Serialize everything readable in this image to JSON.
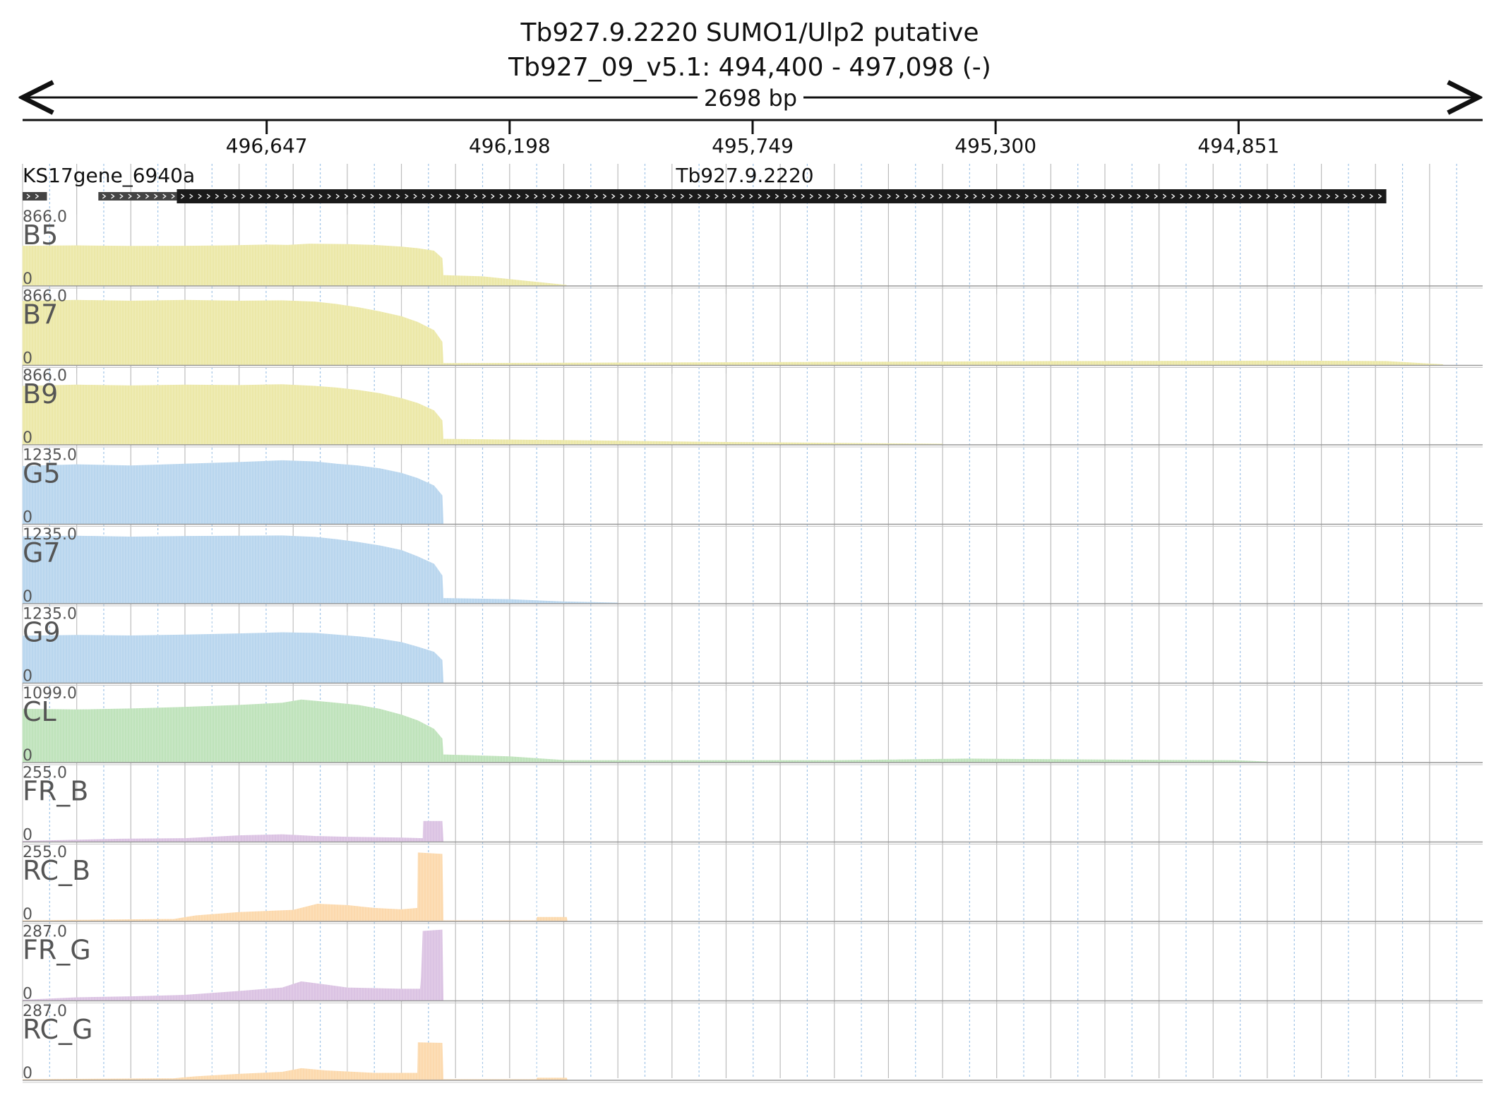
{
  "header": {
    "title_line1": "Tb927.9.2220  SUMO1/Ulp2  putative",
    "title_line2": "Tb927_09_v5.1: 494,400 - 497,098 (-)",
    "span_label": "2698 bp"
  },
  "genes": [
    {
      "name": "KS17gene_6940a",
      "start_bp": 0,
      "end_bp": 45,
      "style": "gray"
    },
    {
      "name": "",
      "start_bp": 140,
      "end_bp": 285,
      "style": "gray"
    },
    {
      "name": "Tb927.9.2220",
      "start_bp": 285,
      "end_bp": 2520,
      "style": "black"
    }
  ],
  "chart_data": {
    "type": "area",
    "x_axis": {
      "start": 497098,
      "end": 494400,
      "ticks": [
        496647,
        496198,
        495749,
        495300,
        494851
      ],
      "tick_labels": [
        "496,647",
        "496,198",
        "495,749",
        "495,300",
        "494,851"
      ],
      "grid": true
    },
    "tracks": [
      {
        "name": "B5",
        "ymax": "866.0",
        "ymin": "0",
        "color": "#ece8a8",
        "points": [
          [
            0,
            480
          ],
          [
            100,
            485
          ],
          [
            200,
            478
          ],
          [
            300,
            480
          ],
          [
            380,
            485
          ],
          [
            450,
            495
          ],
          [
            490,
            490
          ],
          [
            530,
            505
          ],
          [
            600,
            500
          ],
          [
            650,
            490
          ],
          [
            700,
            470
          ],
          [
            730,
            450
          ],
          [
            760,
            420
          ],
          [
            775,
            330
          ],
          [
            777,
            120
          ],
          [
            850,
            105
          ],
          [
            1005,
            0
          ]
        ]
      },
      {
        "name": "B7",
        "ymax": "866.0",
        "ymin": "0",
        "color": "#ece8a8",
        "points": [
          [
            0,
            780
          ],
          [
            100,
            790
          ],
          [
            200,
            780
          ],
          [
            300,
            790
          ],
          [
            400,
            780
          ],
          [
            480,
            785
          ],
          [
            540,
            770
          ],
          [
            580,
            740
          ],
          [
            620,
            700
          ],
          [
            660,
            650
          ],
          [
            700,
            590
          ],
          [
            730,
            520
          ],
          [
            760,
            420
          ],
          [
            775,
            280
          ],
          [
            777,
            15
          ],
          [
            1300,
            25
          ],
          [
            1900,
            40
          ],
          [
            2300,
            45
          ],
          [
            2520,
            40
          ],
          [
            2625,
            0
          ]
        ]
      },
      {
        "name": "B9",
        "ymax": "866.0",
        "ymin": "0",
        "color": "#ece8a8",
        "points": [
          [
            0,
            710
          ],
          [
            100,
            725
          ],
          [
            200,
            715
          ],
          [
            300,
            725
          ],
          [
            400,
            720
          ],
          [
            480,
            730
          ],
          [
            540,
            710
          ],
          [
            580,
            690
          ],
          [
            620,
            660
          ],
          [
            660,
            620
          ],
          [
            700,
            560
          ],
          [
            730,
            500
          ],
          [
            760,
            410
          ],
          [
            775,
            290
          ],
          [
            777,
            60
          ],
          [
            1000,
            45
          ],
          [
            1250,
            25
          ],
          [
            1700,
            0
          ]
        ]
      },
      {
        "name": "G5",
        "ymax": "1235.0",
        "ymin": "0",
        "color": "#b9d6ee",
        "points": [
          [
            0,
            1000
          ],
          [
            100,
            1030
          ],
          [
            200,
            1010
          ],
          [
            300,
            1040
          ],
          [
            400,
            1070
          ],
          [
            480,
            1100
          ],
          [
            540,
            1080
          ],
          [
            580,
            1040
          ],
          [
            620,
            1010
          ],
          [
            660,
            960
          ],
          [
            700,
            880
          ],
          [
            730,
            790
          ],
          [
            760,
            660
          ],
          [
            775,
            490
          ],
          [
            777,
            0
          ]
        ]
      },
      {
        "name": "G7",
        "ymax": "1235.0",
        "ymin": "0",
        "color": "#b9d6ee",
        "points": [
          [
            0,
            1160
          ],
          [
            100,
            1170
          ],
          [
            200,
            1155
          ],
          [
            300,
            1165
          ],
          [
            400,
            1170
          ],
          [
            480,
            1175
          ],
          [
            540,
            1150
          ],
          [
            580,
            1110
          ],
          [
            620,
            1060
          ],
          [
            660,
            1000
          ],
          [
            700,
            920
          ],
          [
            730,
            810
          ],
          [
            760,
            680
          ],
          [
            775,
            480
          ],
          [
            777,
            80
          ],
          [
            900,
            60
          ],
          [
            1000,
            20
          ],
          [
            1100,
            0
          ]
        ]
      },
      {
        "name": "G9",
        "ymax": "1235.0",
        "ymin": "0",
        "color": "#b9d6ee",
        "points": [
          [
            0,
            810
          ],
          [
            100,
            825
          ],
          [
            200,
            815
          ],
          [
            300,
            830
          ],
          [
            400,
            850
          ],
          [
            480,
            870
          ],
          [
            540,
            860
          ],
          [
            580,
            830
          ],
          [
            620,
            800
          ],
          [
            660,
            760
          ],
          [
            700,
            700
          ],
          [
            730,
            620
          ],
          [
            760,
            530
          ],
          [
            775,
            390
          ],
          [
            777,
            0
          ]
        ]
      },
      {
        "name": "CL",
        "ymax": "1099.0",
        "ymin": "0",
        "color": "#bfe3bb",
        "points": [
          [
            0,
            820
          ],
          [
            100,
            810
          ],
          [
            200,
            825
          ],
          [
            300,
            850
          ],
          [
            400,
            880
          ],
          [
            480,
            915
          ],
          [
            515,
            965
          ],
          [
            560,
            930
          ],
          [
            620,
            880
          ],
          [
            660,
            820
          ],
          [
            700,
            730
          ],
          [
            730,
            640
          ],
          [
            760,
            510
          ],
          [
            775,
            360
          ],
          [
            777,
            110
          ],
          [
            900,
            80
          ],
          [
            1005,
            20
          ],
          [
            1500,
            20
          ],
          [
            1750,
            45
          ],
          [
            2000,
            30
          ],
          [
            2240,
            20
          ],
          [
            2300,
            0
          ]
        ]
      },
      {
        "name": "FR_B",
        "ymax": "255.0",
        "ymin": "0",
        "color": "#dbc3e3",
        "points": [
          [
            0,
            0
          ],
          [
            180,
            8
          ],
          [
            300,
            10
          ],
          [
            400,
            20
          ],
          [
            480,
            24
          ],
          [
            540,
            18
          ],
          [
            600,
            15
          ],
          [
            700,
            12
          ],
          [
            740,
            10
          ],
          [
            741,
            72
          ],
          [
            775,
            72
          ],
          [
            777,
            0
          ]
        ]
      },
      {
        "name": "RC_B",
        "ymax": "255.0",
        "ymin": "0",
        "color": "#fcd9ad",
        "points": [
          [
            0,
            0
          ],
          [
            280,
            5
          ],
          [
            320,
            18
          ],
          [
            400,
            30
          ],
          [
            500,
            38
          ],
          [
            545,
            60
          ],
          [
            600,
            55
          ],
          [
            650,
            45
          ],
          [
            700,
            40
          ],
          [
            730,
            45
          ],
          [
            731,
            245
          ],
          [
            775,
            240
          ],
          [
            777,
            0
          ],
          [
            950,
            0
          ],
          [
            951,
            12
          ],
          [
            1005,
            12
          ],
          [
            1006,
            0
          ]
        ]
      },
      {
        "name": "FR_G",
        "ymax": "287.0",
        "ymin": "0",
        "color": "#dbc3e3",
        "points": [
          [
            0,
            0
          ],
          [
            100,
            10
          ],
          [
            200,
            14
          ],
          [
            300,
            20
          ],
          [
            400,
            36
          ],
          [
            480,
            50
          ],
          [
            515,
            75
          ],
          [
            560,
            62
          ],
          [
            600,
            50
          ],
          [
            700,
            45
          ],
          [
            735,
            45
          ],
          [
            737,
            95
          ],
          [
            740,
            280
          ],
          [
            775,
            285
          ],
          [
            777,
            0
          ]
        ]
      },
      {
        "name": "RC_G",
        "ymax": "287.0",
        "ymin": "0",
        "color": "#fcd9ad",
        "points": [
          [
            0,
            0
          ],
          [
            280,
            4
          ],
          [
            320,
            12
          ],
          [
            400,
            22
          ],
          [
            480,
            30
          ],
          [
            515,
            45
          ],
          [
            560,
            36
          ],
          [
            650,
            26
          ],
          [
            730,
            26
          ],
          [
            731,
            150
          ],
          [
            775,
            148
          ],
          [
            777,
            0
          ],
          [
            950,
            0
          ],
          [
            951,
            6
          ],
          [
            1005,
            6
          ],
          [
            1006,
            0
          ]
        ]
      }
    ]
  }
}
